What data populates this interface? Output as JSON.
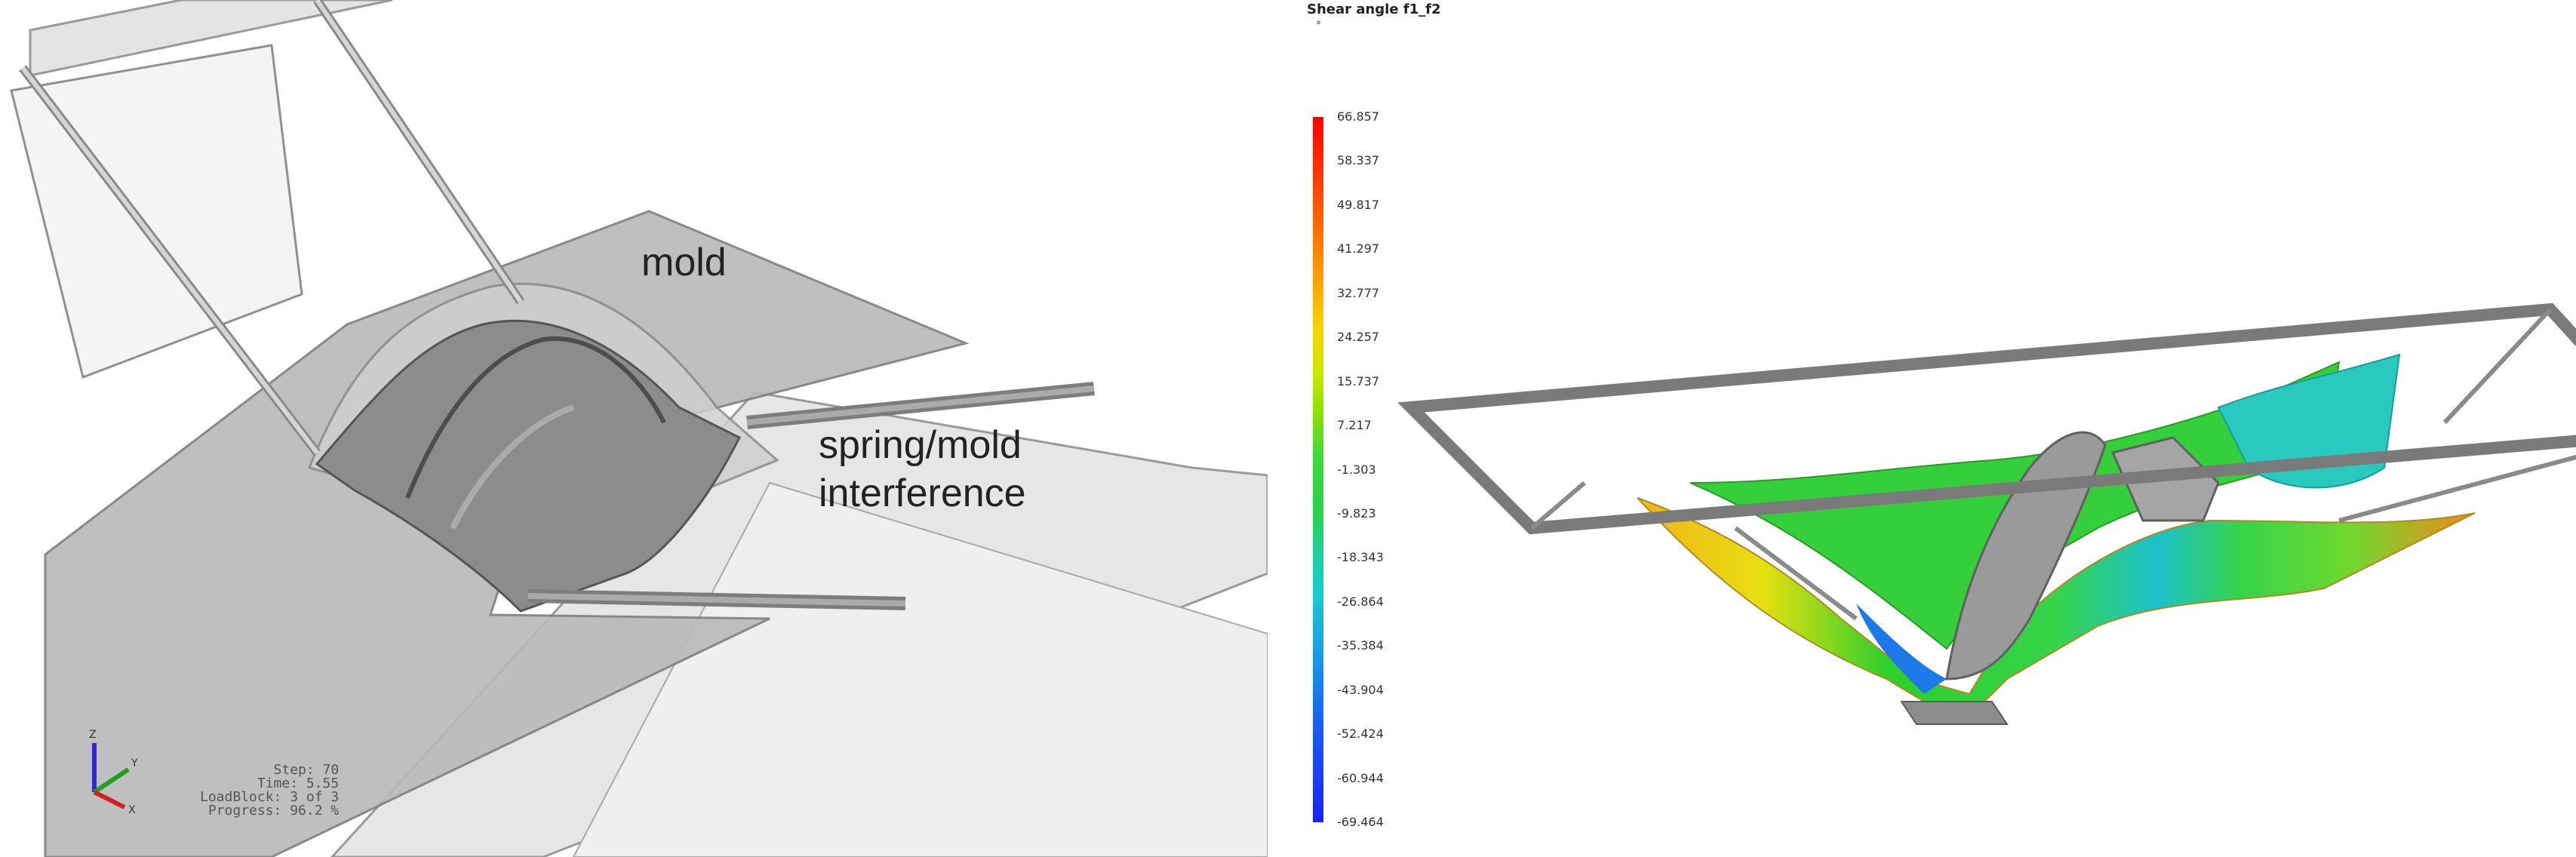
{
  "left_view": {
    "callouts": {
      "mold": "mold",
      "interference_line1": "spring/mold",
      "interference_line2": "interference"
    },
    "triad_labels": {
      "z": "Z",
      "y": "Y",
      "x": "X"
    },
    "status": {
      "step": "Step: 70",
      "time": "Time: 5.55",
      "loadblock": "LoadBlock: 3 of 3",
      "progress": "Progress: 96.2 %"
    }
  },
  "right_view": {
    "legend": {
      "title": "Shear angle f1_f2",
      "unit": "°",
      "ticks": [
        "66.857",
        "58.337",
        "49.817",
        "41.297",
        "32.777",
        "24.257",
        "15.737",
        "7.217",
        "-1.303",
        "-9.823",
        "-18.343",
        "-26.864",
        "-35.384",
        "-43.904",
        "-52.424",
        "-60.944",
        "-69.464"
      ]
    }
  }
}
